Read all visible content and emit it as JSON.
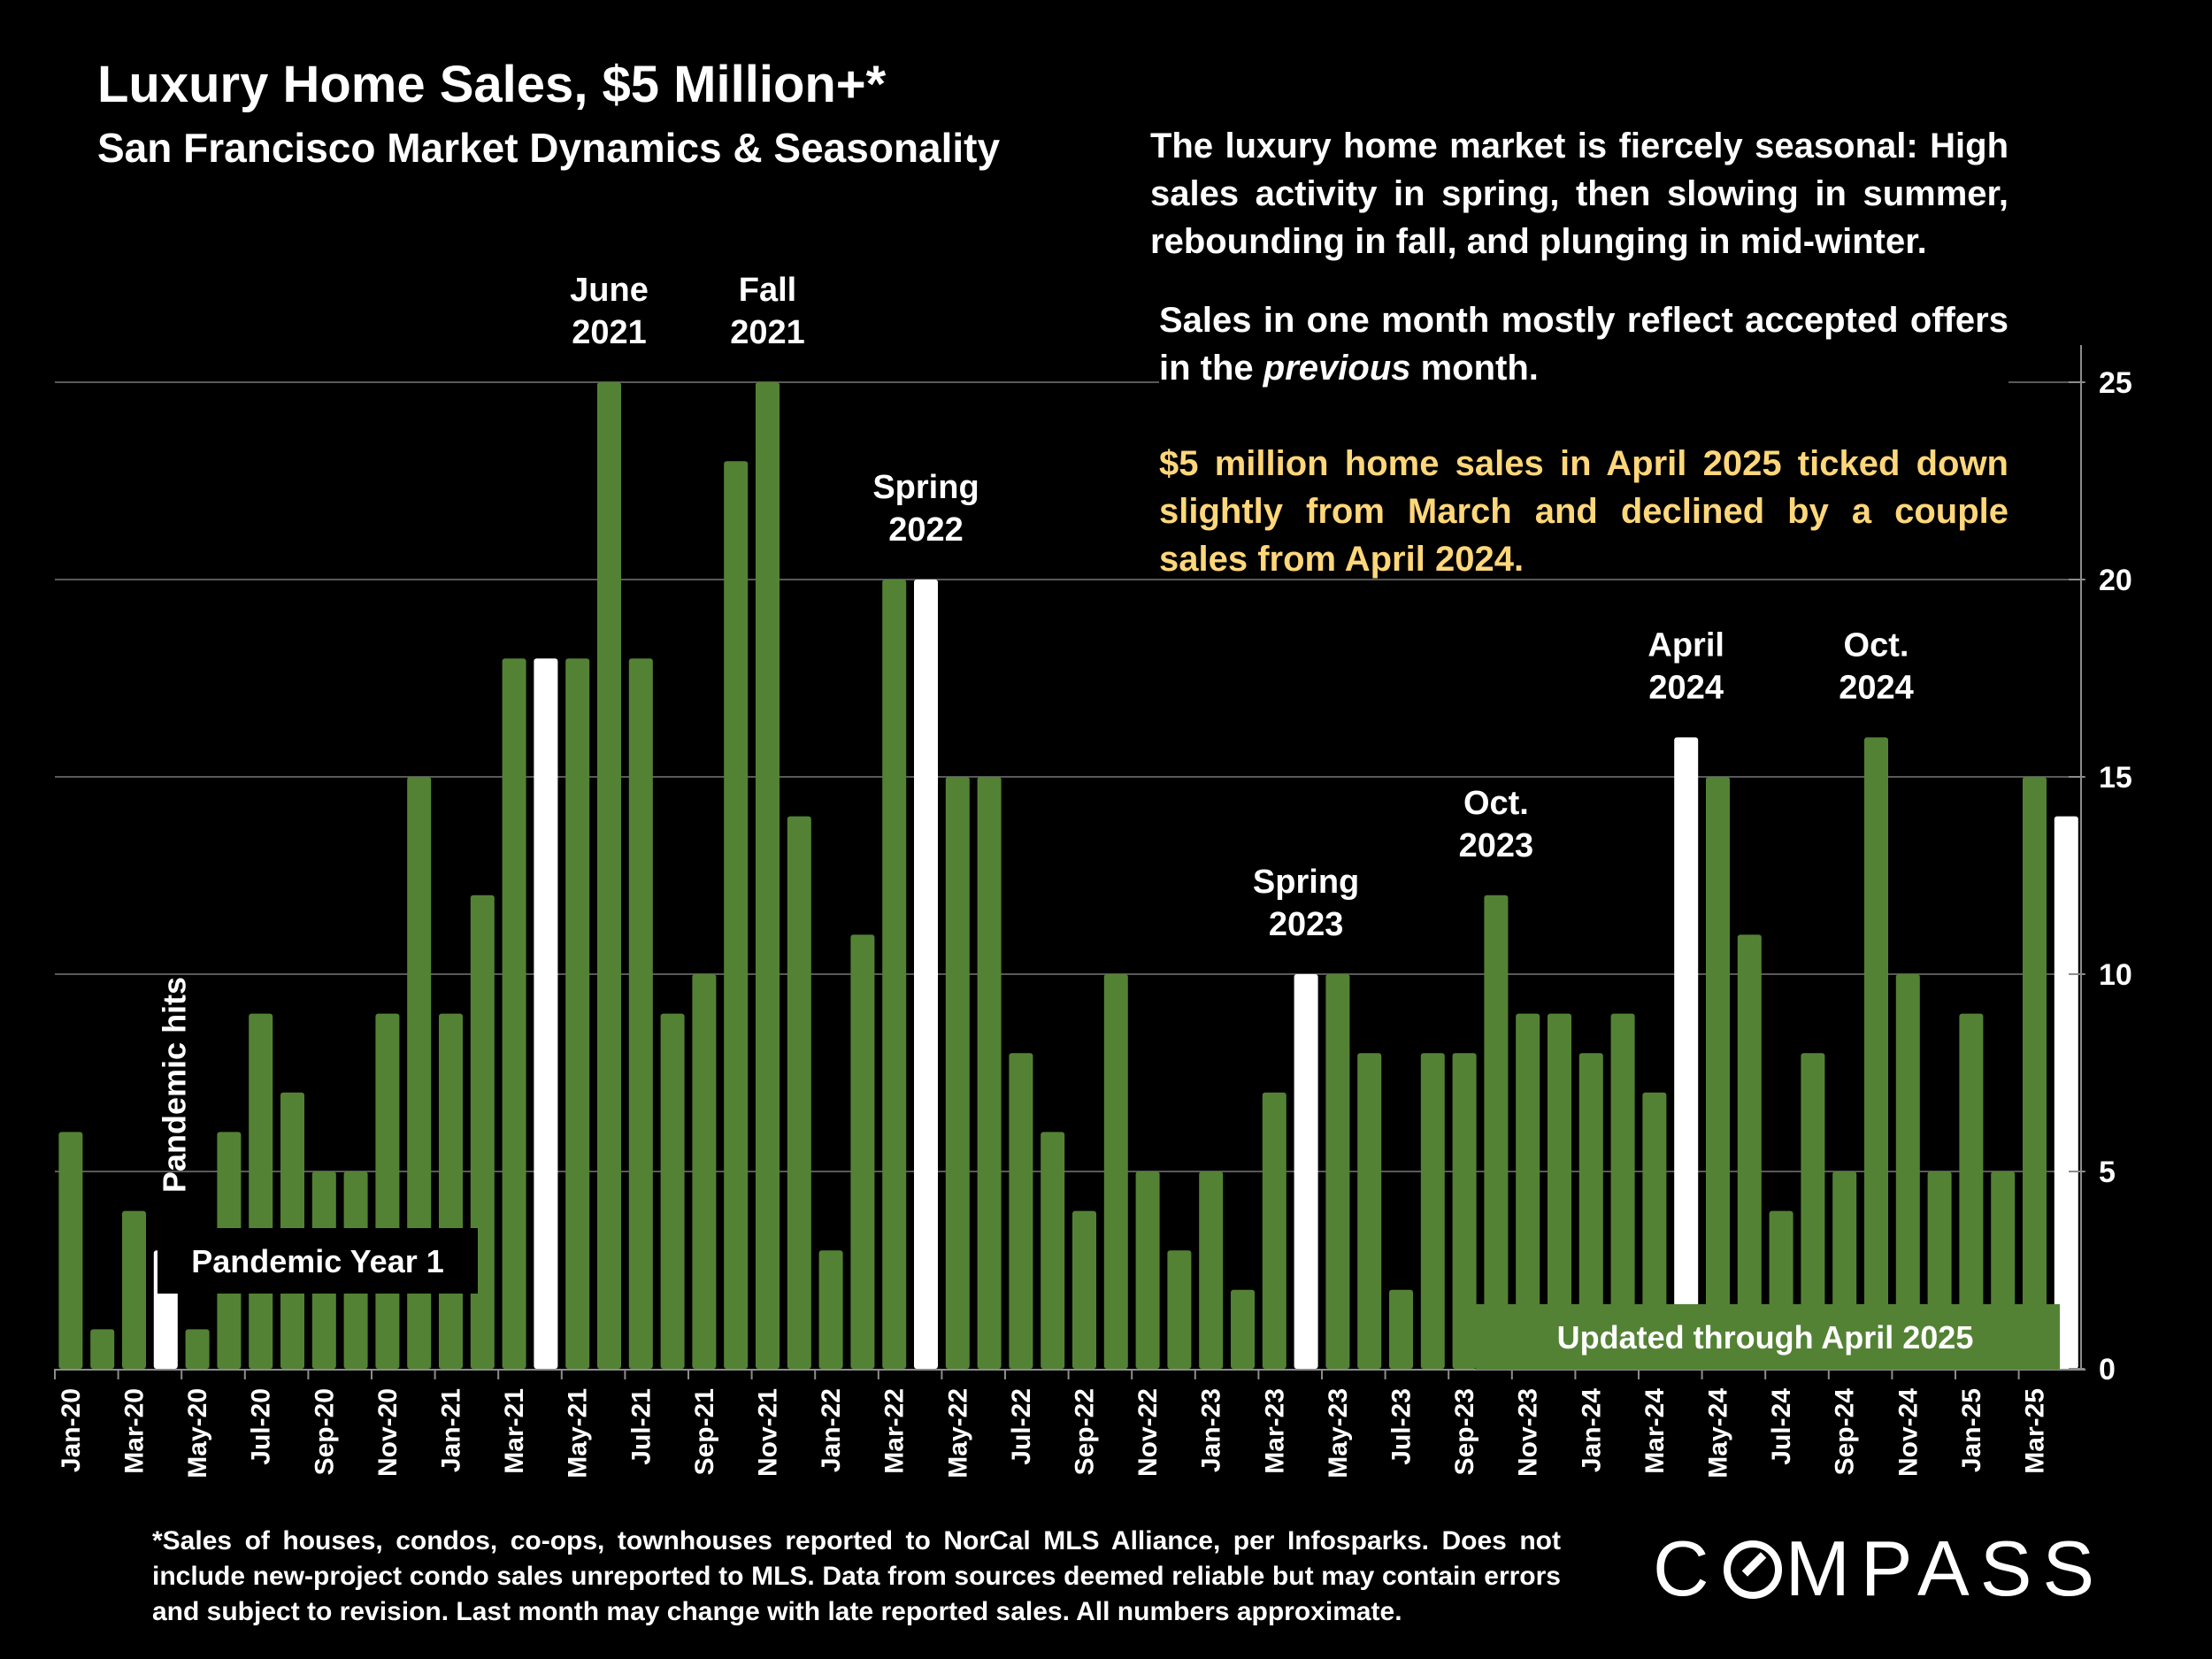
{
  "header": {
    "title": "Luxury Home Sales, $5 Million+*",
    "subtitle": "San Francisco Market Dynamics & Seasonality"
  },
  "commentary": {
    "para1": "The luxury home market is fiercely seasonal:  High sales activity in spring, then slowing in summer, rebounding in fall, and plunging in mid-winter.",
    "para2_before": "Sales in one month mostly reflect accepted offers in the ",
    "para2_emph": "previous",
    "para2_after": " month.",
    "para3": "$5 million home sales in April 2025 ticked down slightly from March and declined by a couple sales from April 2024."
  },
  "footnote": "*Sales of houses, condos, co-ops, townhouses reported to NorCal MLS Alliance, per Infosparks. Does not include new-project condo sales unreported to MLS. Data from sources deemed reliable but may contain errors and subject to revision. Last month may change with late reported sales. All numbers approximate.",
  "brand": {
    "logo_text_left": "C",
    "logo_text_right": "MPASS"
  },
  "colors": {
    "bar": "#548235",
    "highlight": "#FFFFFF",
    "grid": "#595959",
    "accent_text": "#FFD77A",
    "updated_box": "#548235"
  },
  "chart_data": {
    "type": "bar",
    "title": "Luxury Home Sales, $5 Million+*",
    "ylim": [
      0,
      25
    ],
    "yticks": [
      0,
      5,
      10,
      15,
      20,
      25
    ],
    "y_axis_side": "right",
    "categories": [
      "Jan-20",
      "Feb-20",
      "Mar-20",
      "Apr-20",
      "May-20",
      "Jun-20",
      "Jul-20",
      "Aug-20",
      "Sep-20",
      "Oct-20",
      "Nov-20",
      "Dec-20",
      "Jan-21",
      "Feb-21",
      "Mar-21",
      "Apr-21",
      "May-21",
      "Jun-21",
      "Jul-21",
      "Aug-21",
      "Sep-21",
      "Oct-21",
      "Nov-21",
      "Dec-21",
      "Jan-22",
      "Feb-22",
      "Mar-22",
      "Apr-22",
      "May-22",
      "Jun-22",
      "Jul-22",
      "Aug-22",
      "Sep-22",
      "Oct-22",
      "Nov-22",
      "Dec-22",
      "Jan-23",
      "Feb-23",
      "Mar-23",
      "Apr-23",
      "May-23",
      "Jun-23",
      "Jul-23",
      "Aug-23",
      "Sep-23",
      "Oct-23",
      "Nov-23",
      "Dec-23",
      "Jan-24",
      "Feb-24",
      "Mar-24",
      "Apr-24",
      "May-24",
      "Jun-24",
      "Jul-24",
      "Aug-24",
      "Sep-24",
      "Oct-24",
      "Nov-24",
      "Dec-24",
      "Jan-25",
      "Feb-25",
      "Mar-25",
      "Apr-25"
    ],
    "tick_labels_shown": [
      "Jan-20",
      "Mar-20",
      "May-20",
      "Jul-20",
      "Sep-20",
      "Nov-20",
      "Jan-21",
      "Mar-21",
      "May-21",
      "Jul-21",
      "Sep-21",
      "Nov-21",
      "Jan-22",
      "Mar-22",
      "May-22",
      "Jul-22",
      "Sep-22",
      "Nov-22",
      "Jan-23",
      "Mar-23",
      "May-23",
      "Jul-23",
      "Sep-23",
      "Nov-23",
      "Jan-24",
      "Mar-24",
      "May-24",
      "Jul-24",
      "Sep-24",
      "Nov-24",
      "Jan-25",
      "Mar-25"
    ],
    "values": [
      6,
      1,
      4,
      3,
      1,
      6,
      9,
      7,
      5,
      5,
      9,
      15,
      9,
      12,
      18,
      18,
      18,
      25,
      18,
      9,
      10,
      23,
      25,
      14,
      3,
      11,
      20,
      20,
      15,
      15,
      8,
      6,
      4,
      10,
      5,
      3,
      5,
      2,
      7,
      10,
      10,
      8,
      2,
      8,
      8,
      12,
      9,
      9,
      8,
      9,
      7,
      16,
      15,
      11,
      4,
      8,
      5,
      16,
      10,
      5,
      9,
      5,
      15,
      14
    ],
    "highlighted": [
      "Apr-20",
      "Apr-21",
      "Apr-22",
      "Apr-23",
      "Apr-24",
      "Apr-25"
    ],
    "annotations": [
      {
        "at": "Jun-21",
        "lines": [
          "June",
          "2021"
        ]
      },
      {
        "at": "Nov-21",
        "lines": [
          "Fall",
          "2021"
        ]
      },
      {
        "at": "Apr-22",
        "lines": [
          "Spring",
          "2022"
        ]
      },
      {
        "at": "Apr-23",
        "lines": [
          "Spring",
          "2023"
        ]
      },
      {
        "at": "Oct-23",
        "lines": [
          "Oct.",
          "2023"
        ]
      },
      {
        "at": "Apr-24",
        "lines": [
          "April",
          "2024"
        ]
      },
      {
        "at": "Oct-24",
        "lines": [
          "Oct.",
          "2024"
        ]
      }
    ],
    "pandemic_hits_label": "Pandemic hits",
    "pandemic_year_label": "Pandemic Year 1",
    "updated_label": "Updated through April 2025"
  }
}
